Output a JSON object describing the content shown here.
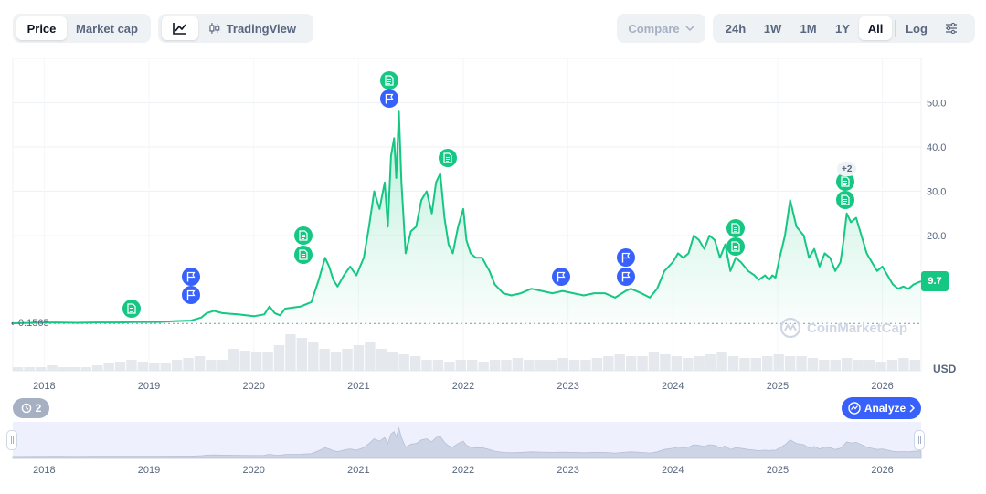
{
  "toolbar": {
    "chart_type_tabs": [
      {
        "label": "Price",
        "active": true
      },
      {
        "label": "Market cap",
        "active": false
      }
    ],
    "view_tabs": [
      {
        "label": "",
        "icon": "line-chart-icon",
        "active": true
      },
      {
        "label": "TradingView",
        "icon": "candlestick-icon",
        "active": false
      }
    ],
    "compare_label": "Compare",
    "ranges": [
      {
        "label": "24h",
        "active": false
      },
      {
        "label": "1W",
        "active": false
      },
      {
        "label": "1M",
        "active": false
      },
      {
        "label": "1Y",
        "active": false
      },
      {
        "label": "All",
        "active": true
      }
    ],
    "log_label": "Log",
    "settings_icon": "sliders-icon"
  },
  "chart_data": {
    "type": "area",
    "x_ticks": [
      "2018",
      "2019",
      "2020",
      "2021",
      "2022",
      "2023",
      "2024",
      "2025",
      "2026"
    ],
    "y_ticks": [
      "50.0",
      "40.0",
      "30.0",
      "20.0"
    ],
    "ylim": [
      0,
      55
    ],
    "xlim": [
      2017.7,
      2026.37
    ],
    "base_value_label": "0.1565",
    "current_price": "9.7",
    "currency": "USD",
    "line_color": "#16c784",
    "grid": true,
    "series": [
      {
        "x": [
          2017.7,
          2017.9,
          2018.1,
          2018.3,
          2018.5,
          2018.7,
          2018.9,
          2019.1,
          2019.25,
          2019.4,
          2019.5,
          2019.55,
          2019.62,
          2019.7,
          2019.85,
          2020.0,
          2020.1,
          2020.15,
          2020.2,
          2020.25,
          2020.3,
          2020.45,
          2020.55,
          2020.62,
          2020.68,
          2020.72,
          2020.76,
          2020.8,
          2020.86,
          2020.92,
          2020.98,
          2021.05,
          2021.1,
          2021.15,
          2021.2,
          2021.25,
          2021.28,
          2021.31,
          2021.34,
          2021.36,
          2021.385,
          2021.41,
          2021.45,
          2021.5,
          2021.55,
          2021.6,
          2021.65,
          2021.7,
          2021.74,
          2021.78,
          2021.82,
          2021.86,
          2021.9,
          2021.95,
          2022.0,
          2022.03,
          2022.07,
          2022.12,
          2022.18,
          2022.25,
          2022.3,
          2022.38,
          2022.46,
          2022.55,
          2022.65,
          2022.75,
          2022.85,
          2022.95,
          2023.05,
          2023.15,
          2023.25,
          2023.35,
          2023.45,
          2023.55,
          2023.6,
          2023.7,
          2023.78,
          2023.85,
          2023.92,
          2024.0,
          2024.05,
          2024.1,
          2024.15,
          2024.2,
          2024.25,
          2024.3,
          2024.35,
          2024.4,
          2024.45,
          2024.5,
          2024.55,
          2024.6,
          2024.65,
          2024.72,
          2024.78,
          2024.82,
          2024.88,
          2024.92,
          2024.95,
          2024.98,
          2025.02,
          2025.07,
          2025.12,
          2025.18,
          2025.25,
          2025.3,
          2025.35,
          2025.4,
          2025.45,
          2025.5,
          2025.55,
          2025.6,
          2025.63,
          2025.66,
          2025.7,
          2025.75,
          2025.8,
          2025.85,
          2025.9,
          2025.95,
          2026.0,
          2026.05,
          2026.1,
          2026.15,
          2026.2,
          2026.25,
          2026.3,
          2026.35,
          2026.37
        ],
        "y": [
          0.2,
          0.3,
          0.4,
          0.3,
          0.4,
          0.4,
          0.5,
          0.5,
          0.7,
          0.8,
          1.5,
          2.5,
          3.0,
          2.5,
          2.2,
          1.8,
          2.2,
          4.0,
          2.5,
          2.0,
          3.5,
          4.0,
          5.0,
          10.0,
          15.0,
          13.0,
          10.0,
          8.5,
          11.0,
          13.0,
          11.0,
          15.0,
          22.0,
          30.0,
          26.0,
          32.0,
          22.0,
          38.0,
          42.0,
          33.0,
          48.0,
          32.0,
          16.0,
          21.0,
          22.0,
          28.0,
          30.0,
          25.0,
          32.0,
          34.0,
          24.0,
          18.0,
          16.0,
          22.0,
          26.0,
          19.0,
          16.0,
          15.0,
          15.0,
          12.0,
          9.0,
          7.0,
          6.5,
          7.0,
          8.0,
          7.5,
          7.0,
          7.5,
          7.0,
          6.5,
          7.0,
          7.0,
          6.0,
          7.5,
          8.0,
          7.0,
          6.0,
          8.0,
          12.0,
          14.0,
          16.0,
          15.0,
          16.0,
          20.0,
          19.0,
          17.0,
          20.0,
          19.0,
          15.0,
          18.0,
          12.0,
          15.0,
          14.0,
          12.0,
          11.0,
          10.0,
          11.0,
          10.0,
          11.0,
          10.5,
          15.0,
          20.0,
          28.0,
          22.0,
          20.0,
          15.0,
          17.0,
          13.0,
          16.0,
          15.0,
          12.0,
          14.0,
          19.0,
          25.0,
          23.0,
          24.0,
          20.0,
          16.0,
          14.0,
          12.0,
          13.0,
          11.0,
          9.0,
          8.0,
          8.5,
          8.0,
          9.0,
          9.5,
          9.7
        ]
      }
    ],
    "volume": [
      0.1,
      0.1,
      0.1,
      0.15,
      0.1,
      0.1,
      0.1,
      0.15,
      0.2,
      0.25,
      0.3,
      0.25,
      0.2,
      0.2,
      0.3,
      0.35,
      0.4,
      0.3,
      0.3,
      0.6,
      0.55,
      0.5,
      0.5,
      0.7,
      1.0,
      0.9,
      0.8,
      0.6,
      0.5,
      0.6,
      0.7,
      0.8,
      0.6,
      0.5,
      0.45,
      0.4,
      0.3,
      0.3,
      0.25,
      0.3,
      0.3,
      0.25,
      0.3,
      0.3,
      0.35,
      0.3,
      0.3,
      0.3,
      0.35,
      0.3,
      0.3,
      0.35,
      0.4,
      0.45,
      0.4,
      0.4,
      0.5,
      0.45,
      0.4,
      0.35,
      0.4,
      0.45,
      0.5,
      0.4,
      0.35,
      0.35,
      0.4,
      0.45,
      0.4,
      0.4,
      0.35,
      0.3,
      0.3,
      0.35,
      0.3,
      0.3,
      0.25,
      0.3,
      0.35,
      0.3
    ]
  },
  "events": [
    {
      "type": "doc",
      "x": 2018.83,
      "y": 3.6
    },
    {
      "type": "flag",
      "x": 2019.4,
      "y": 6.5
    },
    {
      "type": "flag",
      "x": 2019.4,
      "y": 10.7
    },
    {
      "type": "doc",
      "x": 2020.47,
      "y": 15.7
    },
    {
      "type": "doc",
      "x": 2020.47,
      "y": 20.0
    },
    {
      "type": "flag",
      "x": 2021.29,
      "y": 51.0
    },
    {
      "type": "doc",
      "x": 2021.29,
      "y": 55.0
    },
    {
      "type": "doc",
      "x": 2021.85,
      "y": 37.5
    },
    {
      "type": "flag",
      "x": 2022.93,
      "y": 10.8
    },
    {
      "type": "flag",
      "x": 2023.55,
      "y": 10.8
    },
    {
      "type": "flag",
      "x": 2023.55,
      "y": 15.0
    },
    {
      "type": "doc",
      "x": 2024.6,
      "y": 17.6
    },
    {
      "type": "doc",
      "x": 2024.6,
      "y": 21.7
    },
    {
      "type": "doc",
      "x": 2025.65,
      "y": 28.0
    },
    {
      "type": "doc",
      "x": 2025.65,
      "y": 32.2
    }
  ],
  "events_more": "+2",
  "watermark": "CoinMarketCap",
  "navigator": {
    "x_ticks": [
      "2018",
      "2019",
      "2020",
      "2021",
      "2022",
      "2023",
      "2024",
      "2025",
      "2026"
    ]
  },
  "history_count": "2",
  "analyze_label": "Analyze"
}
